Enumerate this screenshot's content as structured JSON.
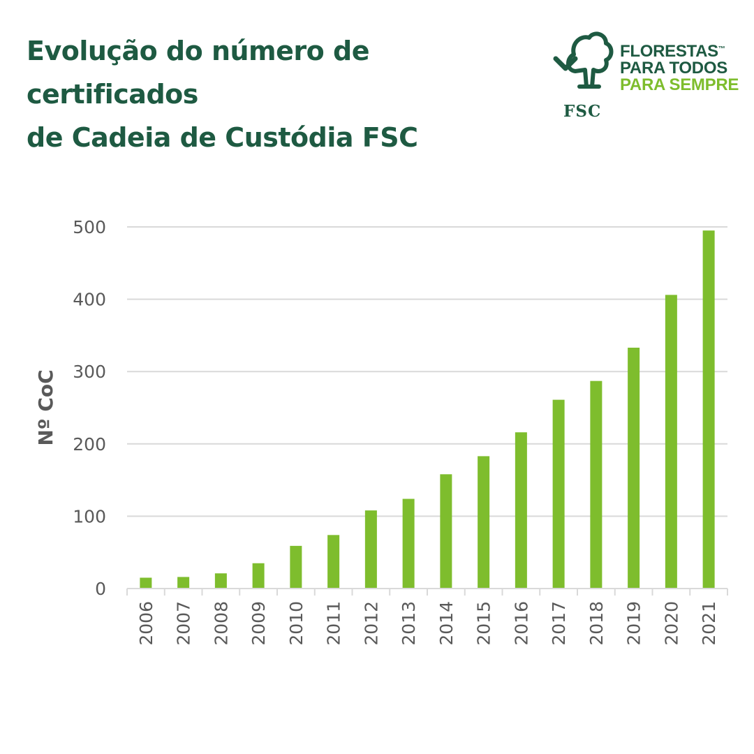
{
  "title": {
    "line1": "Evolução do número de certificados",
    "line2": "de Cadeia de Custódia FSC"
  },
  "logo": {
    "icon": "fsc-tree-checkmark-logo",
    "brand": "FSC",
    "line1": "FLORESTAS",
    "line2": "PARA TODOS",
    "line3": "PARA SEMPRE",
    "tm": "™"
  },
  "colors": {
    "title": "#1e5a42",
    "bar": "#7ebd2d",
    "grid": "#d9d9d9",
    "axis_text": "#595959"
  },
  "chart_data": {
    "type": "bar",
    "categories": [
      "2006",
      "2007",
      "2008",
      "2009",
      "2010",
      "2011",
      "2012",
      "2013",
      "2014",
      "2015",
      "2016",
      "2017",
      "2018",
      "2019",
      "2020",
      "2021"
    ],
    "values": [
      15,
      16,
      21,
      35,
      59,
      74,
      108,
      124,
      158,
      183,
      216,
      261,
      287,
      333,
      406,
      495
    ],
    "xlabel": "",
    "ylabel": "Nº CoC",
    "ylim": [
      0,
      500
    ],
    "yticks": [
      0,
      100,
      200,
      300,
      400,
      500
    ],
    "grid": true,
    "legend": "none"
  }
}
